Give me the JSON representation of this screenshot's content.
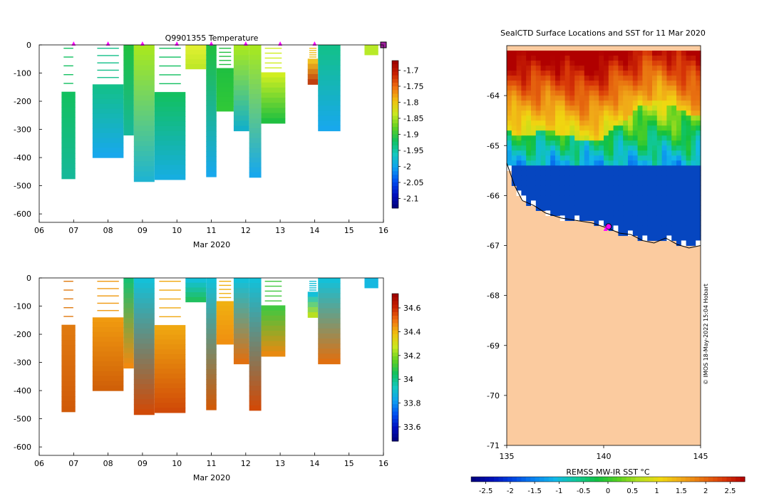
{
  "credit": "© IMOS 18-May-2022 15:04 Hobart",
  "chart_data": [
    {
      "id": "temperature",
      "type": "heatmap",
      "title": "Q9901355  Temperature",
      "xlabel": "Mar 2020",
      "x_ticks": [
        "06",
        "07",
        "08",
        "09",
        "10",
        "11",
        "12",
        "13",
        "14",
        "15",
        "16"
      ],
      "x_range_days": [
        6,
        16
      ],
      "ylim": [
        -630,
        0
      ],
      "y_ticks": [
        0,
        -100,
        -200,
        -300,
        -400,
        -500,
        -600
      ],
      "colorbar": {
        "ticks": [
          -1.7,
          -1.75,
          -1.8,
          -1.85,
          -1.9,
          -1.95,
          -2,
          -2.05,
          -2.1
        ],
        "range": [
          -2.13,
          -1.67
        ]
      },
      "profile_markers_day": [
        7.0,
        8.0,
        9.0,
        10.0,
        11.0,
        12.0,
        13.0,
        14.0
      ],
      "last_marker_day": 16.0,
      "profiles": [
        {
          "x0": 6.65,
          "x1": 7.05,
          "depth": 475,
          "c0": "#12c060",
          "c1": "#16b898",
          "thin_top": true
        },
        {
          "x0": 7.55,
          "x1": 8.45,
          "depth": 400,
          "c0": "#13c08a",
          "c1": "#18a8ec",
          "thin_top": true
        },
        {
          "x0": 8.45,
          "x1": 8.75,
          "depth": 320,
          "c0": "#20c040",
          "c1": "#16b898"
        },
        {
          "x0": 8.75,
          "x1": 9.35,
          "depth": 485,
          "c0": "#a8e81e",
          "c1": "#20b4d0"
        },
        {
          "x0": 9.35,
          "x1": 10.25,
          "depth": 478,
          "c0": "#12c060",
          "c1": "#16aee0",
          "thin_top": true
        },
        {
          "x0": 10.25,
          "x1": 10.85,
          "depth": 85,
          "c0": "#e0f030",
          "c1": "#c0e828"
        },
        {
          "x0": 10.85,
          "x1": 11.15,
          "depth": 468,
          "c0": "#20c040",
          "c1": "#18a8ec"
        },
        {
          "x0": 11.15,
          "x1": 11.65,
          "depth": 235,
          "c0": "#20c040",
          "c1": "#30c838",
          "thin_top": true
        },
        {
          "x0": 11.65,
          "x1": 12.1,
          "depth": 305,
          "c0": "#a8e81e",
          "c1": "#14b0c8"
        },
        {
          "x0": 12.1,
          "x1": 12.45,
          "depth": 470,
          "c0": "#a8e81e",
          "c1": "#18a8ec"
        },
        {
          "x0": 12.45,
          "x1": 13.15,
          "depth": 278,
          "c0": "#d0ee20",
          "c1": "#20c040",
          "thin_top": true
        },
        {
          "x0": 13.8,
          "x1": 14.1,
          "depth": 140,
          "c0": "#f0c020",
          "c1": "#c04010",
          "thin_top": true
        },
        {
          "x0": 14.1,
          "x1": 14.75,
          "depth": 305,
          "c0": "#13c08a",
          "c1": "#18a8ec"
        },
        {
          "x0": 15.45,
          "x1": 15.85,
          "depth": 35,
          "c0": "#b8ea28",
          "c1": "#b8ea28"
        }
      ]
    },
    {
      "id": "salinity",
      "type": "heatmap",
      "title": "",
      "xlabel": "Mar 2020",
      "x_ticks": [
        "06",
        "07",
        "08",
        "09",
        "10",
        "11",
        "12",
        "13",
        "14",
        "15",
        "16"
      ],
      "x_range_days": [
        6,
        16
      ],
      "ylim": [
        -630,
        0
      ],
      "y_ticks": [
        0,
        -100,
        -200,
        -300,
        -400,
        -500,
        -600
      ],
      "colorbar": {
        "ticks": [
          34.6,
          34.4,
          34.2,
          34,
          33.8,
          33.6
        ],
        "range": [
          33.48,
          34.72
        ]
      },
      "profiles": [
        {
          "x0": 6.65,
          "x1": 7.05,
          "depth": 475,
          "c0": "#e07a10",
          "c1": "#d05a08",
          "thin_top": true
        },
        {
          "x0": 7.55,
          "x1": 8.45,
          "depth": 400,
          "c0": "#f09a10",
          "c1": "#d06008",
          "thin_top": true
        },
        {
          "x0": 8.45,
          "x1": 8.75,
          "depth": 320,
          "c0": "#18c070",
          "c1": "#f08a10"
        },
        {
          "x0": 8.75,
          "x1": 9.35,
          "depth": 485,
          "c0": "#14c0d8",
          "c1": "#d04a08"
        },
        {
          "x0": 9.35,
          "x1": 10.25,
          "depth": 478,
          "c0": "#f0a810",
          "c1": "#d04a08",
          "thin_top": true
        },
        {
          "x0": 10.25,
          "x1": 10.85,
          "depth": 85,
          "c0": "#14c0d8",
          "c1": "#20c060"
        },
        {
          "x0": 10.85,
          "x1": 11.15,
          "depth": 468,
          "c0": "#14c0d8",
          "c1": "#d05a08"
        },
        {
          "x0": 11.15,
          "x1": 11.65,
          "depth": 235,
          "c0": "#f0b010",
          "c1": "#f09010",
          "thin_top": true
        },
        {
          "x0": 11.65,
          "x1": 12.1,
          "depth": 305,
          "c0": "#14c0d8",
          "c1": "#e07010"
        },
        {
          "x0": 12.1,
          "x1": 12.45,
          "depth": 470,
          "c0": "#14c0d8",
          "c1": "#d04a08"
        },
        {
          "x0": 12.45,
          "x1": 13.15,
          "depth": 278,
          "c0": "#40c840",
          "c1": "#e88a10",
          "thin_top": true
        },
        {
          "x0": 13.8,
          "x1": 14.1,
          "depth": 140,
          "c0": "#14c0d8",
          "c1": "#b8e020",
          "thin_top": true
        },
        {
          "x0": 14.1,
          "x1": 14.75,
          "depth": 305,
          "c0": "#14c0d8",
          "c1": "#e07010"
        },
        {
          "x0": 15.45,
          "x1": 15.85,
          "depth": 35,
          "c0": "#14b8e0",
          "c1": "#14b8e0"
        }
      ]
    },
    {
      "id": "sst_map",
      "type": "heatmap",
      "title": "SealCTD Surface Locations and SST for 11 Mar 2020",
      "xlim": [
        135,
        145
      ],
      "ylim": [
        -71,
        -63
      ],
      "x_ticks": [
        "135",
        "140",
        "145"
      ],
      "x_tick_values": [
        135,
        140,
        145
      ],
      "y_ticks": [
        "-64",
        "-65",
        "-66",
        "-67",
        "-68",
        "-69",
        "-70",
        "-71"
      ],
      "y_tick_values": [
        -64,
        -65,
        -66,
        -67,
        -68,
        -69,
        -70,
        -71
      ],
      "colorbar": {
        "label": "REMSS MW-IR SST °C",
        "ticks": [
          "-2.5",
          "-2",
          "-1.5",
          "-1",
          "-0.5",
          "0",
          "0.5",
          "1",
          "1.5",
          "2",
          "2.5"
        ],
        "tick_values": [
          -2.5,
          -2,
          -1.5,
          -1,
          -0.5,
          0,
          0.5,
          1,
          1.5,
          2,
          2.5
        ],
        "range": [
          -2.8,
          2.8
        ],
        "colors": [
          "#00007a",
          "#0010b8",
          "#0044e0",
          "#0a84f0",
          "#12b8e8",
          "#10c89a",
          "#12c040",
          "#58d020",
          "#b8e020",
          "#f0d810",
          "#f0a818",
          "#e87010",
          "#d83808",
          "#b00000"
        ]
      },
      "land_color": "#fbcb9f",
      "ice_color": "#0646c0",
      "station_positions": [
        {
          "lon": 140.25,
          "lat": -66.62
        },
        {
          "lon": 140.1,
          "lat": -66.68
        }
      ]
    }
  ]
}
